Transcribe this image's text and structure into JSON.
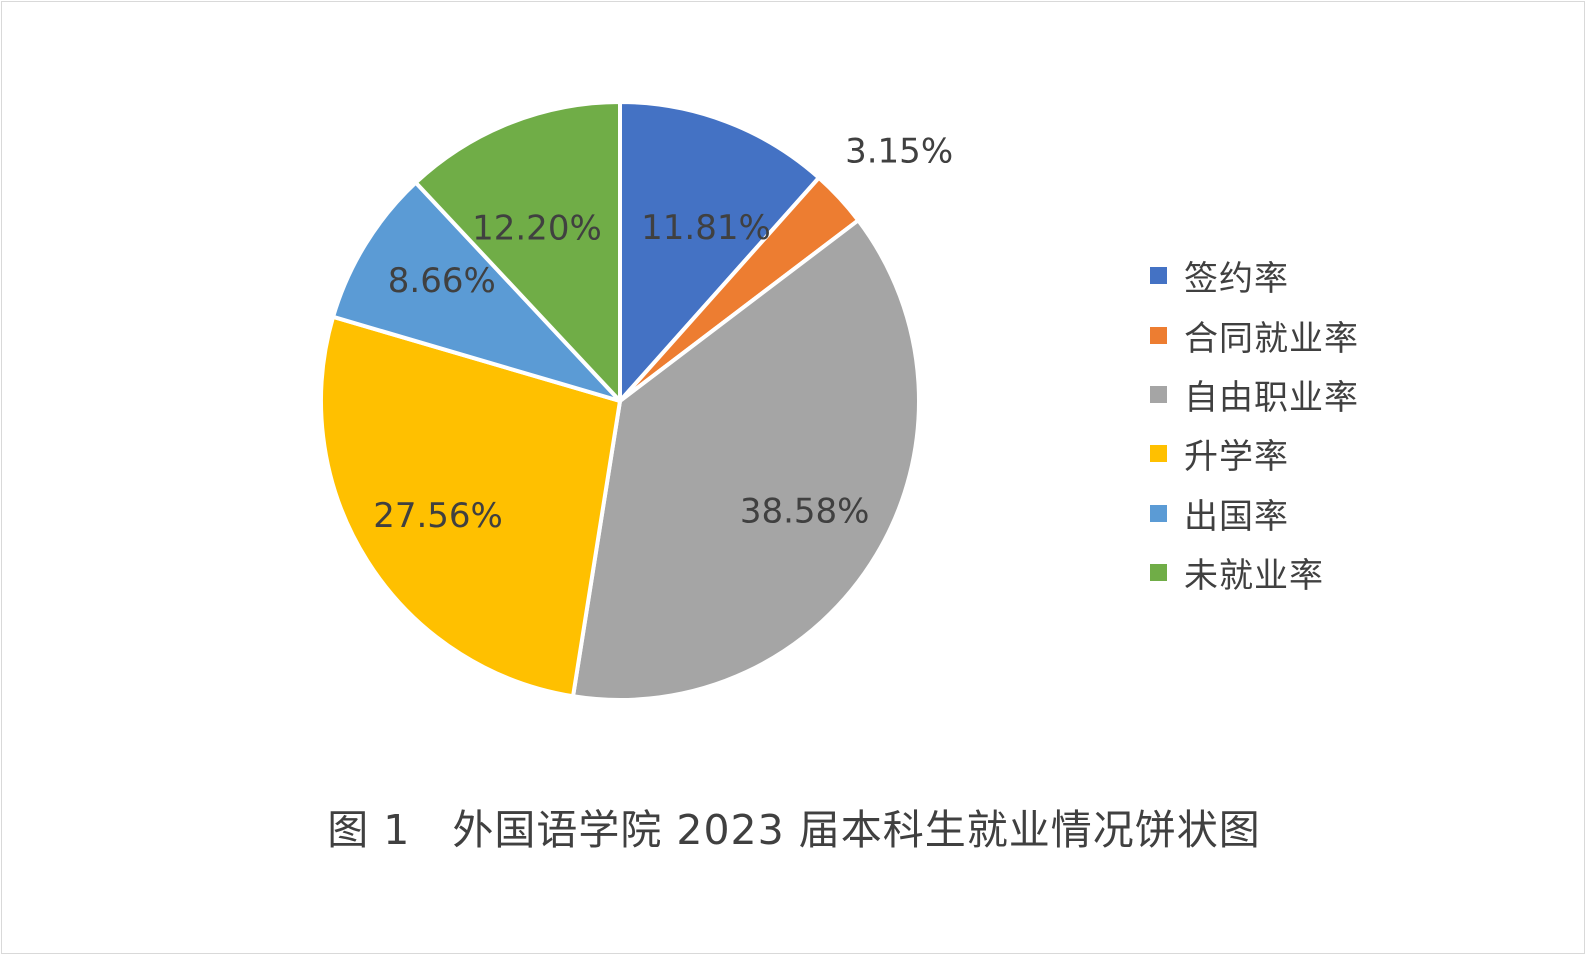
{
  "chart_data": {
    "type": "pie",
    "categories": [
      "签约率",
      "合同就业率",
      "自由职业率",
      "升学率",
      "出国率",
      "未就业率"
    ],
    "values": [
      11.81,
      3.15,
      38.58,
      27.56,
      8.66,
      12.2
    ],
    "data_labels": [
      "11.81%",
      "3.15%",
      "38.58%",
      "27.56%",
      "8.66%",
      "12.20%"
    ],
    "colors": [
      "#4472C4",
      "#ED7D31",
      "#A5A5A5",
      "#FFC000",
      "#5B9BD5",
      "#70AD47"
    ],
    "legend_position": "right",
    "start": "12 o'clock, clockwise"
  },
  "caption": "图 1　外国语学院 2023 届本科生就业情况饼状图"
}
